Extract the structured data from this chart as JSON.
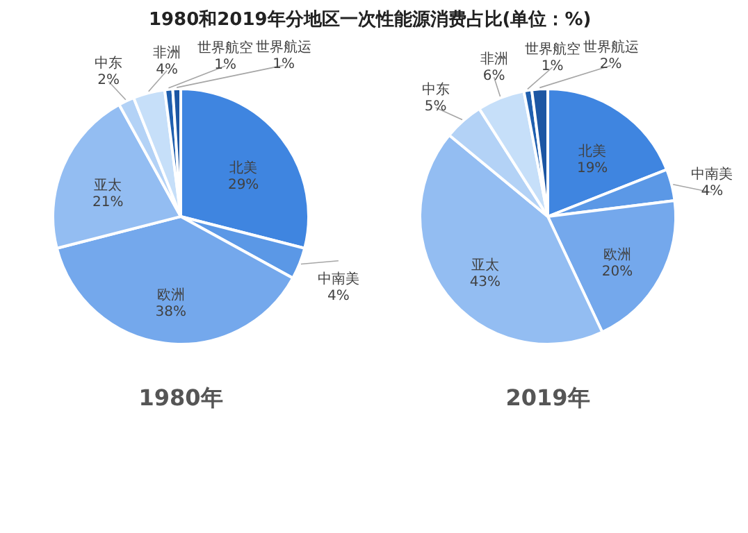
{
  "chart_data": [
    {
      "type": "pie",
      "title": "1980和2019年分地区一次性能源消费占比(单位：%)",
      "xlabel": "1980年",
      "legend": false,
      "categories": [
        "北美",
        "中南美",
        "欧洲",
        "亚太",
        "中东",
        "非洲",
        "世界航空",
        "世界航运"
      ],
      "values": [
        29,
        4,
        38,
        21,
        2,
        4,
        1,
        1
      ],
      "value_labels": [
        "29%",
        "4%",
        "38%",
        "21%",
        "2%",
        "4%",
        "1%",
        "1%"
      ],
      "colors": [
        "#3f85e0",
        "#5b98e6",
        "#74a8ec",
        "#93bdf2",
        "#b3d2f6",
        "#c6dff9",
        "#1f5faf",
        "#1c56a3"
      ]
    },
    {
      "type": "pie",
      "xlabel": "2019年",
      "legend": false,
      "categories": [
        "北美",
        "中南美",
        "欧洲",
        "亚太",
        "中东",
        "非洲",
        "世界航空",
        "世界航运"
      ],
      "values": [
        19,
        4,
        20,
        43,
        5,
        6,
        1,
        2
      ],
      "value_labels": [
        "19%",
        "4%",
        "20%",
        "43%",
        "5%",
        "6%",
        "1%",
        "2%"
      ],
      "colors": [
        "#3f85e0",
        "#5b98e6",
        "#74a8ec",
        "#93bdf2",
        "#b3d2f6",
        "#c6dff9",
        "#1f5faf",
        "#1c56a3"
      ]
    }
  ]
}
